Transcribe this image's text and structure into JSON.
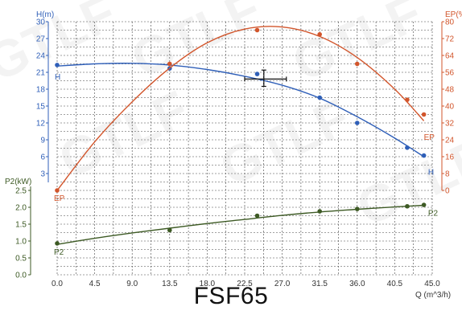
{
  "title": "FSF65",
  "watermarks": [
    "GTLF",
    "GTLF",
    "GTLF",
    "GTLF",
    "GTLF",
    "GTLF"
  ],
  "colors": {
    "h": "#2f5fb8",
    "ep": "#d2552b",
    "p2": "#3d5a24",
    "grid": "#444444",
    "axis": "#222222"
  },
  "chart_data": {
    "type": "line",
    "x_axis": {
      "label": "Q (m^3/h)",
      "ticks": [
        "0.0",
        "4.5",
        "9.0",
        "13.5",
        "18.0",
        "22.5",
        "27.0",
        "31.5",
        "36.0",
        "40.5",
        "45.0"
      ],
      "range": [
        0,
        45
      ]
    },
    "y_axes": [
      {
        "id": "H",
        "label": "H(m)",
        "ticks": [
          "3",
          "6",
          "9",
          "12",
          "15",
          "18",
          "21",
          "24",
          "27",
          "30"
        ],
        "range": [
          0,
          30
        ]
      },
      {
        "id": "EP",
        "label": "EP(%)",
        "ticks": [
          "0",
          "8",
          "16",
          "24",
          "32",
          "40",
          "48",
          "56",
          "64",
          "72",
          "80"
        ],
        "range": [
          0,
          80
        ]
      },
      {
        "id": "P2",
        "label": "P2(kW)",
        "ticks": [
          "0.0",
          "0.5",
          "1.0",
          "1.5",
          "2.0",
          "2.5"
        ],
        "range": [
          0,
          2.5
        ]
      }
    ],
    "grid": true,
    "series": [
      {
        "name": "H",
        "axis": "H",
        "points": [
          [
            0,
            22.3
          ],
          [
            13.5,
            21.7
          ],
          [
            24,
            20.7
          ],
          [
            31.5,
            16.5
          ],
          [
            36,
            12
          ],
          [
            42,
            7.6
          ],
          [
            44,
            6.2
          ]
        ],
        "curve": [
          [
            0,
            22.1
          ],
          [
            4.5,
            22.5
          ],
          [
            9,
            22.6
          ],
          [
            13.5,
            22.3
          ],
          [
            18,
            21.5
          ],
          [
            22.5,
            20.3
          ],
          [
            27,
            18.7
          ],
          [
            31.5,
            16.4
          ],
          [
            36,
            13.1
          ],
          [
            40.5,
            9.3
          ],
          [
            44,
            6
          ]
        ]
      },
      {
        "name": "EP",
        "axis": "EP",
        "points": [
          [
            0,
            0
          ],
          [
            13.5,
            60
          ],
          [
            24,
            76
          ],
          [
            31.5,
            74
          ],
          [
            36,
            60
          ],
          [
            42,
            43
          ],
          [
            44,
            36
          ]
        ],
        "curve": [
          [
            0,
            0
          ],
          [
            4.5,
            23
          ],
          [
            9,
            42
          ],
          [
            13.5,
            58
          ],
          [
            18,
            70
          ],
          [
            22.5,
            76.5
          ],
          [
            27,
            77.5
          ],
          [
            31.5,
            73
          ],
          [
            36,
            63
          ],
          [
            40.5,
            48
          ],
          [
            44,
            33
          ]
        ]
      },
      {
        "name": "P2",
        "axis": "P2",
        "points": [
          [
            0,
            0.93
          ],
          [
            13.5,
            1.32
          ],
          [
            24,
            1.75
          ],
          [
            31.5,
            1.88
          ],
          [
            36,
            1.95
          ],
          [
            42,
            2.03
          ],
          [
            44,
            2.07
          ]
        ],
        "curve": [
          [
            0,
            0.9
          ],
          [
            4.5,
            1.08
          ],
          [
            9,
            1.24
          ],
          [
            13.5,
            1.38
          ],
          [
            18,
            1.52
          ],
          [
            22.5,
            1.64
          ],
          [
            27,
            1.76
          ],
          [
            31.5,
            1.86
          ],
          [
            36,
            1.94
          ],
          [
            40.5,
            2.01
          ],
          [
            44,
            2.06
          ]
        ]
      }
    ],
    "series_labels": {
      "H_start": "H",
      "H_end": "H",
      "EP_start": "EP",
      "EP_end": "EP",
      "P2_start": "P2",
      "P2_end": "P2"
    },
    "operating_point": {
      "x": 24.8,
      "h": 19.8,
      "x_range": [
        22.5,
        27.5
      ],
      "h_range": [
        18.5,
        21.4
      ]
    }
  }
}
